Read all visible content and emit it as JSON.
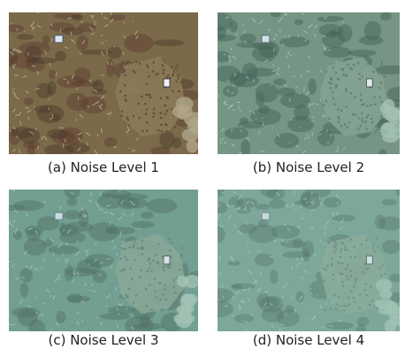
{
  "panels": [
    {
      "caption": "(a) Noise Level 1",
      "tint": "#7a6a4a",
      "overlay_opacity": 0.0
    },
    {
      "caption": "(b) Noise Level 2",
      "tint": "#6e8a78",
      "overlay_opacity": 0.18
    },
    {
      "caption": "(c) Noise Level 3",
      "tint": "#5f8f80",
      "overlay_opacity": 0.3
    },
    {
      "caption": "(d) Noise Level 4",
      "tint": "#6a9488",
      "overlay_opacity": 0.38
    }
  ]
}
